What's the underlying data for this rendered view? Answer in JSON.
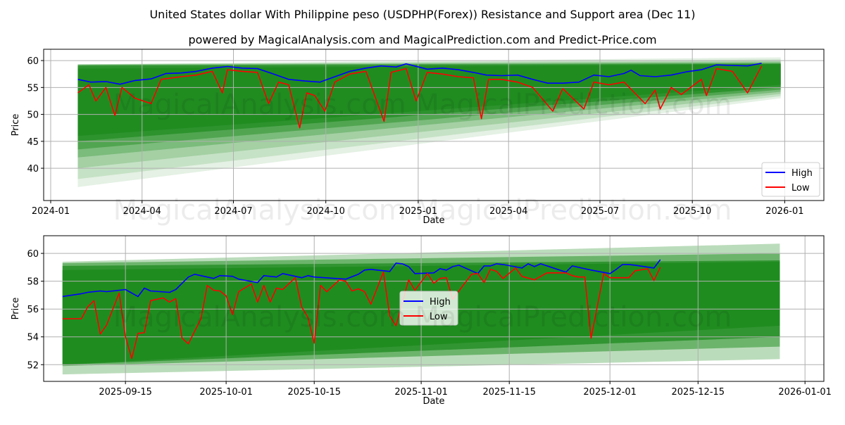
{
  "title": "United States dollar With Philippine peso (USDPHP(Forex)) Resistance and Support area (Dec 11)",
  "subtitle": "powered by MagicalAnalysis.com and MagicalPrediction.com and Predict-Price.com",
  "watermark": "MagicalAnalysis.com  MagicalPrediction.com",
  "colors": {
    "high": "#0000ff",
    "low": "#ff0000",
    "band": "#1e8b1e",
    "grid": "#b0b0b0"
  },
  "chart_data": [
    {
      "type": "line",
      "xlabel": "Date",
      "ylabel": "Price",
      "xlim": [
        "2023-12-25",
        "2026-02-09"
      ],
      "ylim": [
        34.0,
        62.1
      ],
      "grid": true,
      "legend_position": "lower-right",
      "xticks": [
        "2024-01",
        "2024-04",
        "2024-07",
        "2024-10",
        "2025-01",
        "2025-04",
        "2025-07",
        "2025-10",
        "2026-01"
      ],
      "yticks": [
        40,
        45,
        50,
        55,
        60
      ],
      "band_range": [
        "2024-01-28",
        "2025-12-28"
      ],
      "bands": [
        {
          "low": [
            36.5,
            53.0
          ],
          "high": [
            59.3,
            60.6
          ],
          "alpha": 0.12
        },
        {
          "low": [
            38.0,
            53.4
          ],
          "high": [
            59.3,
            60.2
          ],
          "alpha": 0.15
        },
        {
          "low": [
            40.0,
            53.8
          ],
          "high": [
            59.3,
            59.9
          ],
          "alpha": 0.2
        },
        {
          "low": [
            42.0,
            54.2
          ],
          "high": [
            59.2,
            59.7
          ],
          "alpha": 0.3
        },
        {
          "low": [
            43.5,
            54.6
          ],
          "high": [
            59.2,
            59.5
          ],
          "alpha": 0.45
        },
        {
          "low": [
            45.0,
            55.0
          ],
          "high": [
            59.0,
            59.4
          ],
          "alpha": 0.7
        },
        {
          "low": [
            46.0,
            55.5
          ],
          "high": [
            58.5,
            59.3
          ],
          "alpha": 0.85
        }
      ],
      "series": [
        {
          "name": "High",
          "x": [
            "2024-01-28",
            "2024-02-10",
            "2024-02-25",
            "2024-03-10",
            "2024-03-25",
            "2024-04-10",
            "2024-04-25",
            "2024-05-10",
            "2024-05-25",
            "2024-06-10",
            "2024-06-25",
            "2024-07-10",
            "2024-07-25",
            "2024-08-10",
            "2024-08-25",
            "2024-09-10",
            "2024-09-25",
            "2024-10-10",
            "2024-10-25",
            "2024-11-10",
            "2024-11-25",
            "2024-12-10",
            "2024-12-20",
            "2025-01-10",
            "2025-01-25",
            "2025-02-10",
            "2025-02-25",
            "2025-03-10",
            "2025-03-25",
            "2025-04-10",
            "2025-04-25",
            "2025-05-10",
            "2025-05-25",
            "2025-06-10",
            "2025-06-25",
            "2025-07-10",
            "2025-07-25",
            "2025-08-01",
            "2025-08-10",
            "2025-08-25",
            "2025-09-10",
            "2025-09-25",
            "2025-10-10",
            "2025-10-25",
            "2025-11-10",
            "2025-11-25",
            "2025-12-09"
          ],
          "values": [
            56.5,
            56.0,
            56.1,
            55.6,
            56.3,
            56.6,
            57.6,
            57.7,
            58.0,
            58.6,
            58.9,
            58.6,
            58.5,
            57.5,
            56.5,
            56.2,
            56.0,
            57.0,
            58.0,
            58.6,
            59.0,
            58.8,
            59.4,
            58.4,
            58.6,
            58.3,
            57.8,
            57.3,
            57.2,
            57.3,
            56.5,
            55.8,
            55.8,
            56.0,
            57.3,
            57.0,
            57.6,
            58.2,
            57.2,
            57.0,
            57.3,
            57.9,
            58.3,
            59.2,
            59.1,
            59.0,
            59.5
          ]
        },
        {
          "name": "Low",
          "x": [
            "2024-01-28",
            "2024-02-08",
            "2024-02-15",
            "2024-02-25",
            "2024-03-05",
            "2024-03-12",
            "2024-03-25",
            "2024-04-10",
            "2024-04-20",
            "2024-05-10",
            "2024-05-25",
            "2024-06-10",
            "2024-06-20",
            "2024-06-25",
            "2024-07-10",
            "2024-07-25",
            "2024-08-05",
            "2024-08-15",
            "2024-08-25",
            "2024-09-05",
            "2024-09-12",
            "2024-09-20",
            "2024-09-30",
            "2024-10-10",
            "2024-10-25",
            "2024-11-10",
            "2024-11-28",
            "2024-12-05",
            "2024-12-20",
            "2024-12-30",
            "2025-01-10",
            "2025-01-25",
            "2025-02-10",
            "2025-02-25",
            "2025-03-05",
            "2025-03-12",
            "2025-03-25",
            "2025-04-10",
            "2025-04-25",
            "2025-05-15",
            "2025-05-25",
            "2025-06-15",
            "2025-06-25",
            "2025-07-10",
            "2025-07-25",
            "2025-08-15",
            "2025-08-25",
            "2025-08-30",
            "2025-09-10",
            "2025-09-20",
            "2025-10-10",
            "2025-10-15",
            "2025-10-25",
            "2025-11-10",
            "2025-11-25",
            "2025-12-09"
          ],
          "values": [
            54.0,
            55.5,
            52.5,
            55.0,
            49.8,
            55.0,
            53.0,
            52.0,
            56.5,
            57.0,
            57.3,
            58.0,
            54.0,
            58.3,
            58.0,
            57.8,
            52.0,
            56.0,
            55.5,
            47.5,
            54.0,
            53.5,
            50.6,
            56.0,
            57.5,
            58.0,
            48.7,
            57.8,
            58.5,
            52.5,
            57.8,
            57.5,
            57.0,
            56.8,
            49.2,
            56.5,
            56.5,
            56.0,
            55.0,
            50.6,
            54.8,
            51.0,
            56.0,
            55.5,
            56.0,
            52.0,
            54.5,
            51.0,
            55.0,
            53.7,
            56.5,
            53.5,
            58.5,
            58.0,
            54.0,
            59.0
          ]
        }
      ]
    },
    {
      "type": "line",
      "xlabel": "Date",
      "ylabel": "Price",
      "xlim": [
        "2025-09-02",
        "2026-01-04"
      ],
      "ylim": [
        50.8,
        61.27
      ],
      "grid": true,
      "legend_position": "center",
      "xticks": [
        "2025-09-15",
        "2025-10-01",
        "2025-10-15",
        "2025-11-01",
        "2025-11-15",
        "2025-12-01",
        "2025-12-15",
        "2026-01-01"
      ],
      "yticks": [
        52,
        54,
        56,
        58,
        60
      ],
      "band_range": [
        "2025-09-05",
        "2025-12-28"
      ],
      "bands": [
        {
          "low": [
            51.3,
            52.4
          ],
          "high": [
            59.4,
            60.7
          ],
          "alpha": 0.3
        },
        {
          "low": [
            51.9,
            53.3
          ],
          "high": [
            59.3,
            60.0
          ],
          "alpha": 0.5
        },
        {
          "low": [
            52.0,
            54.0
          ],
          "high": [
            59.1,
            59.5
          ],
          "alpha": 0.75
        },
        {
          "low": [
            52.0,
            54.8
          ],
          "high": [
            58.8,
            59.4
          ],
          "alpha": 0.9
        }
      ],
      "series": [
        {
          "name": "High",
          "x": [
            "2025-09-05",
            "2025-09-08",
            "2025-09-09",
            "2025-09-11",
            "2025-09-12",
            "2025-09-15",
            "2025-09-17",
            "2025-09-18",
            "2025-09-19",
            "2025-09-22",
            "2025-09-23",
            "2025-09-25",
            "2025-09-26",
            "2025-09-29",
            "2025-09-30",
            "2025-10-02",
            "2025-10-03",
            "2025-10-06",
            "2025-10-07",
            "2025-10-09",
            "2025-10-10",
            "2025-10-13",
            "2025-10-14",
            "2025-10-15",
            "2025-10-20",
            "2025-10-22",
            "2025-10-23",
            "2025-10-24",
            "2025-10-27",
            "2025-10-28",
            "2025-10-29",
            "2025-10-30",
            "2025-10-31",
            "2025-11-03",
            "2025-11-04",
            "2025-11-05",
            "2025-11-06",
            "2025-11-07",
            "2025-11-10",
            "2025-11-11",
            "2025-11-12",
            "2025-11-13",
            "2025-11-14",
            "2025-11-17",
            "2025-11-18",
            "2025-11-19",
            "2025-11-20",
            "2025-11-24",
            "2025-11-25",
            "2025-11-27",
            "2025-11-28",
            "2025-12-01",
            "2025-12-02",
            "2025-12-03",
            "2025-12-04",
            "2025-12-05",
            "2025-12-08",
            "2025-12-09"
          ],
          "values": [
            56.9,
            57.1,
            57.2,
            57.3,
            57.25,
            57.4,
            56.9,
            57.5,
            57.3,
            57.2,
            57.4,
            58.3,
            58.5,
            58.2,
            58.4,
            58.35,
            58.15,
            57.9,
            58.4,
            58.3,
            58.55,
            58.25,
            58.4,
            58.3,
            58.15,
            58.5,
            58.8,
            58.85,
            58.7,
            59.3,
            59.25,
            59.05,
            58.55,
            58.6,
            58.9,
            58.8,
            59.05,
            59.15,
            58.55,
            59.1,
            59.1,
            59.25,
            59.2,
            58.95,
            59.25,
            59.05,
            59.25,
            58.65,
            59.1,
            58.9,
            58.8,
            58.55,
            58.85,
            59.2,
            59.2,
            59.15,
            58.95,
            59.55
          ]
        },
        {
          "name": "Low",
          "x": [
            "2025-09-05",
            "2025-09-08",
            "2025-09-09",
            "2025-09-10",
            "2025-09-11",
            "2025-09-12",
            "2025-09-14",
            "2025-09-15",
            "2025-09-16",
            "2025-09-17",
            "2025-09-18",
            "2025-09-19",
            "2025-09-21",
            "2025-09-22",
            "2025-09-23",
            "2025-09-24",
            "2025-09-25",
            "2025-09-27",
            "2025-09-28",
            "2025-09-29",
            "2025-09-30",
            "2025-10-01",
            "2025-10-02",
            "2025-10-03",
            "2025-10-05",
            "2025-10-06",
            "2025-10-07",
            "2025-10-08",
            "2025-10-09",
            "2025-10-10",
            "2025-10-12",
            "2025-10-13",
            "2025-10-14",
            "2025-10-15",
            "2025-10-16",
            "2025-10-17",
            "2025-10-19",
            "2025-10-20",
            "2025-10-21",
            "2025-10-22",
            "2025-10-23",
            "2025-10-24",
            "2025-10-26",
            "2025-10-27",
            "2025-10-28",
            "2025-10-30",
            "2025-10-31",
            "2025-11-02",
            "2025-11-03",
            "2025-11-04",
            "2025-11-05",
            "2025-11-06",
            "2025-11-09",
            "2025-11-10",
            "2025-11-11",
            "2025-11-12",
            "2025-11-13",
            "2025-11-14",
            "2025-11-16",
            "2025-11-17",
            "2025-11-19",
            "2025-11-20",
            "2025-11-21",
            "2025-11-23",
            "2025-11-24",
            "2025-11-25",
            "2025-11-26",
            "2025-11-27",
            "2025-11-28",
            "2025-11-30",
            "2025-12-01",
            "2025-12-04",
            "2025-12-05",
            "2025-12-07",
            "2025-12-08",
            "2025-12-09"
          ],
          "values": [
            55.3,
            55.3,
            56.15,
            56.6,
            54.2,
            54.85,
            57.15,
            54.0,
            52.45,
            54.25,
            54.3,
            56.6,
            56.8,
            56.5,
            56.75,
            53.9,
            53.5,
            55.3,
            57.7,
            57.35,
            57.3,
            56.95,
            55.6,
            57.25,
            57.8,
            56.5,
            57.7,
            56.5,
            57.5,
            57.4,
            58.25,
            56.15,
            55.4,
            53.55,
            57.7,
            57.25,
            58.1,
            58.0,
            57.3,
            57.45,
            57.25,
            56.35,
            58.65,
            55.5,
            54.8,
            58.1,
            57.35,
            58.55,
            57.85,
            58.2,
            58.25,
            56.7,
            58.5,
            58.55,
            57.9,
            58.85,
            58.7,
            58.2,
            58.95,
            58.35,
            58.1,
            58.35,
            58.6,
            58.6,
            58.6,
            58.4,
            58.3,
            58.3,
            53.9,
            58.55,
            58.25,
            58.25,
            58.75,
            58.9,
            58.05,
            59.0
          ]
        }
      ]
    }
  ]
}
